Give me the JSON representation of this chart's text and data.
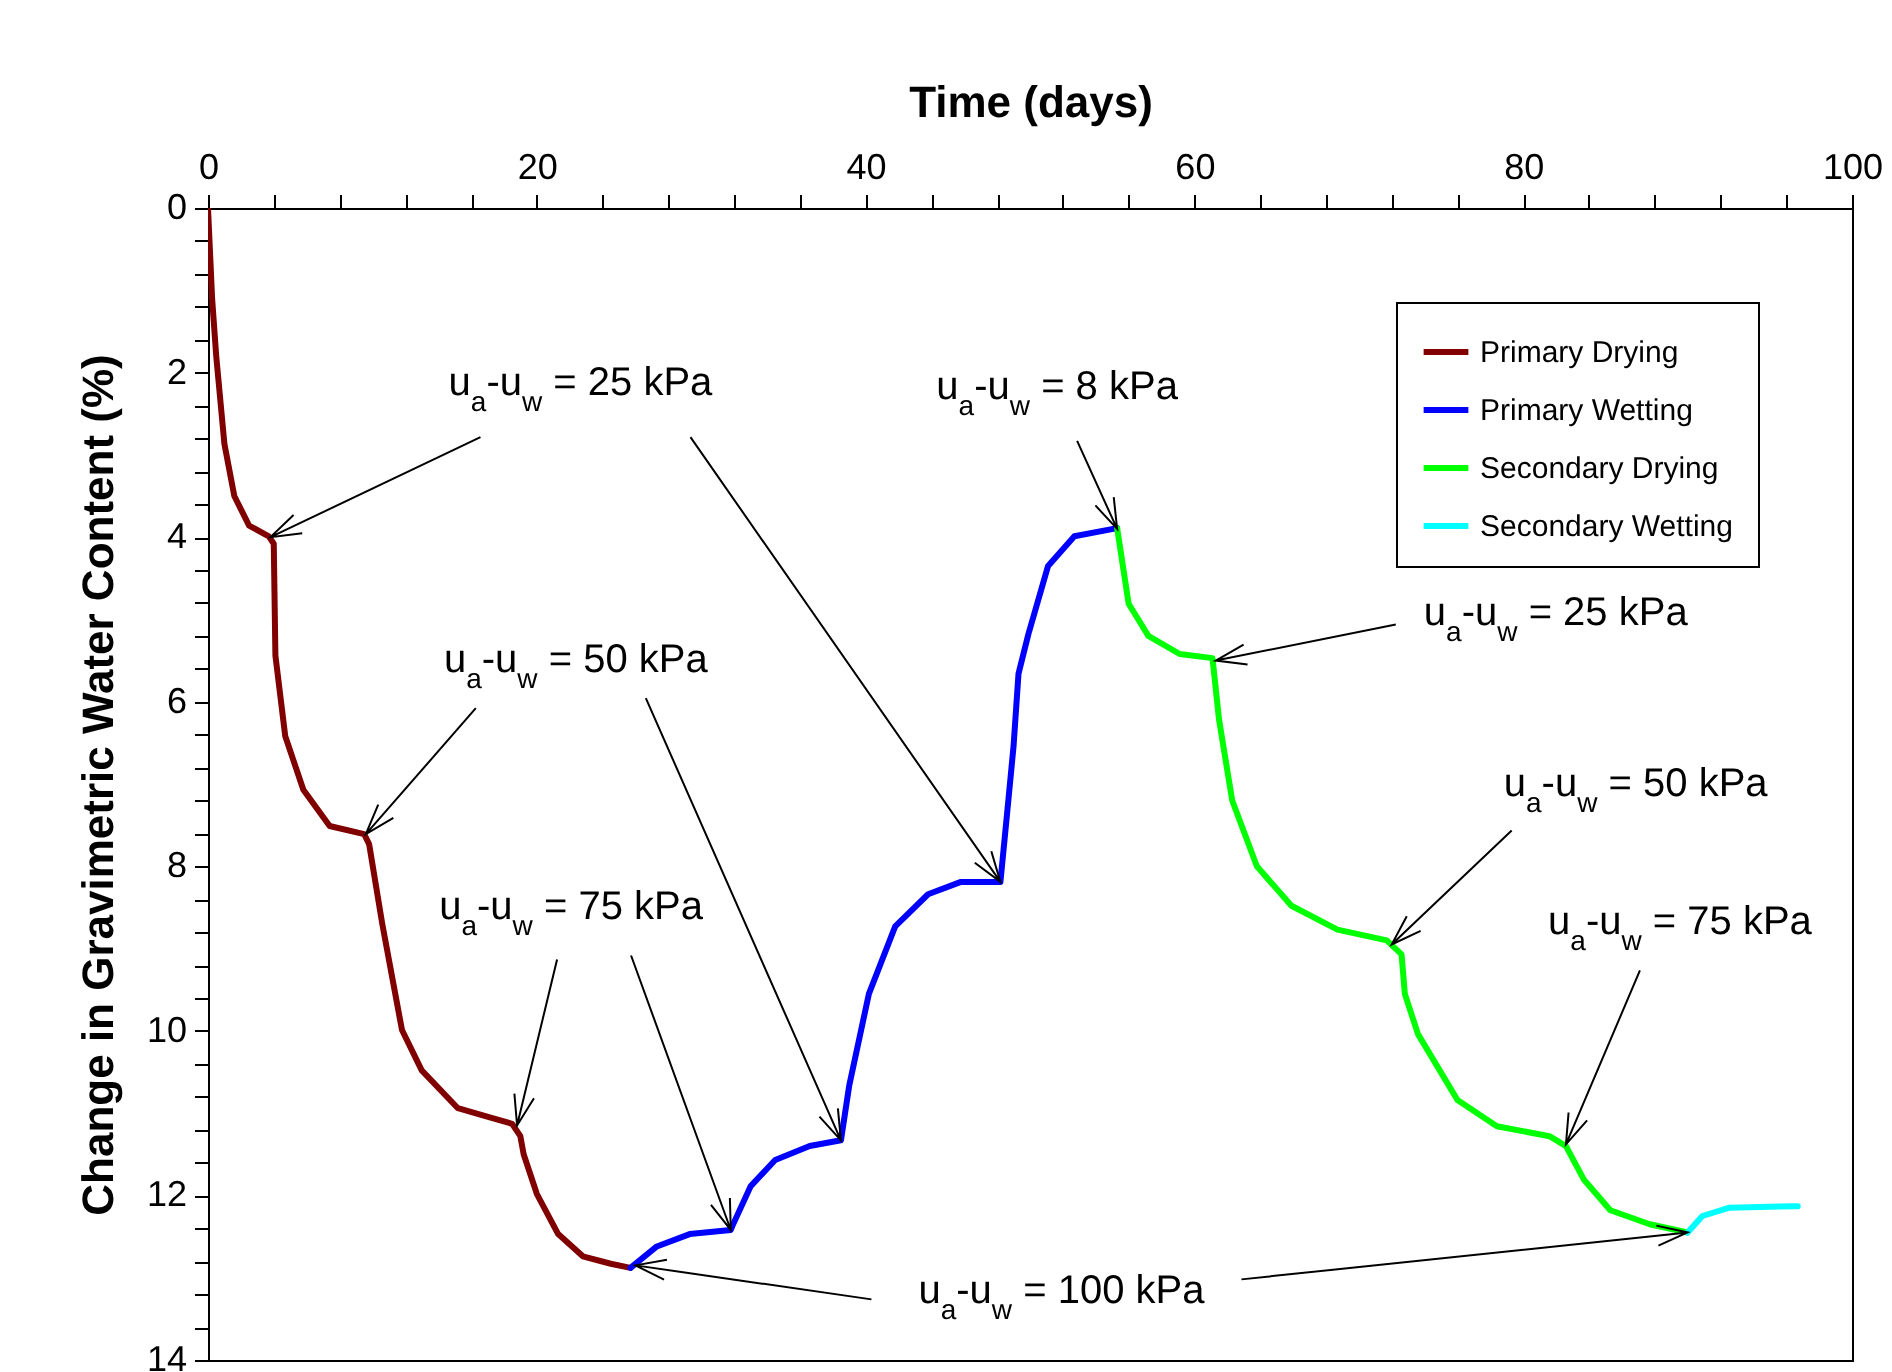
{
  "chart_data": {
    "type": "line",
    "xlabel": "Time (days)",
    "ylabel": "Change in Gravimetric Water Content (%)",
    "xlim": [
      0,
      100
    ],
    "ylim": [
      14,
      0
    ],
    "xticks": [
      0,
      {
        "value": 4,
        "label": null
      },
      {
        "value": 8,
        "label": null
      },
      {
        "value": 12,
        "label": null
      },
      {
        "value": 16,
        "label": null
      },
      20,
      {
        "value": 24,
        "label": null
      },
      {
        "value": 28,
        "label": null
      },
      {
        "value": 32,
        "label": null
      },
      {
        "value": 36,
        "label": null
      },
      40,
      {
        "value": 44,
        "label": null
      },
      {
        "value": 48,
        "label": null
      },
      {
        "value": 52,
        "label": null
      },
      {
        "value": 56,
        "label": null
      },
      60,
      {
        "value": 64,
        "label": null
      },
      {
        "value": 68,
        "label": null
      },
      {
        "value": 72,
        "label": null
      },
      {
        "value": 76,
        "label": null
      },
      80,
      {
        "value": 84,
        "label": null
      },
      {
        "value": 88,
        "label": null
      },
      {
        "value": 92,
        "label": null
      },
      {
        "value": 96,
        "label": null
      },
      100
    ],
    "yticks": [
      0,
      {
        "value": 0.4,
        "label": null
      },
      {
        "value": 0.8,
        "label": null
      },
      {
        "value": 1.2,
        "label": null
      },
      {
        "value": 1.6,
        "label": null
      },
      2,
      {
        "value": 2.4,
        "label": null
      },
      {
        "value": 2.8,
        "label": null
      },
      {
        "value": 3.2,
        "label": null
      },
      {
        "value": 3.6,
        "label": null
      },
      4,
      {
        "value": 4.4,
        "label": null
      },
      {
        "value": 4.8,
        "label": null
      },
      {
        "value": 5.2,
        "label": null
      },
      {
        "value": 5.6,
        "label": null
      },
      6,
      {
        "value": 6.4,
        "label": null
      },
      {
        "value": 6.8,
        "label": null
      },
      {
        "value": 7.2,
        "label": null
      },
      {
        "value": 7.6,
        "label": null
      },
      8,
      {
        "value": 8.4,
        "label": null
      },
      {
        "value": 8.8,
        "label": null
      },
      {
        "value": 9.2,
        "label": null
      },
      {
        "value": 9.6,
        "label": null
      },
      10,
      {
        "value": 10.4,
        "label": null
      },
      {
        "value": 10.8,
        "label": null
      },
      {
        "value": 11.2,
        "label": null
      },
      {
        "value": 11.6,
        "label": null
      },
      12,
      {
        "value": 12.4,
        "label": null
      },
      {
        "value": 12.8,
        "label": null
      },
      {
        "value": 13.2,
        "label": null
      },
      {
        "value": 13.6,
        "label": null
      },
      14
    ],
    "grid": false,
    "legend": "top right",
    "line_style": "solid",
    "series": [
      {
        "name": "Primary Drying",
        "color": "#800000",
        "x": [
          0,
          0.25,
          0.5,
          1.0,
          1.6,
          2.5,
          3.7,
          4.0,
          4.1,
          4.7,
          5.8,
          7.4,
          9.5,
          9.8,
          10.6,
          11.8,
          13.0,
          15.2,
          17.3,
          18.5,
          19.0,
          19.2,
          20.0,
          21.3,
          22.8,
          24.5,
          25.7
        ],
        "values": [
          0,
          1.1,
          1.8,
          2.87,
          3.5,
          3.86,
          3.99,
          4.08,
          5.44,
          6.42,
          7.07,
          7.51,
          7.61,
          7.73,
          8.7,
          9.99,
          10.48,
          10.94,
          11.06,
          11.13,
          11.28,
          11.5,
          11.98,
          12.47,
          12.74,
          12.83,
          12.88
        ]
      },
      {
        "name": "Primary Wetting",
        "color": "#0000ff",
        "x": [
          25.7,
          27.3,
          29.3,
          31.8,
          31.9,
          33.0,
          34.5,
          36.6,
          38.5,
          39.0,
          40.2,
          41.8,
          43.8,
          45.8,
          48.2,
          48.6,
          49.0,
          49.3,
          49.9,
          51.1,
          52.7,
          55.3
        ],
        "values": [
          12.88,
          12.62,
          12.47,
          12.42,
          12.37,
          11.89,
          11.57,
          11.4,
          11.33,
          10.67,
          9.55,
          8.73,
          8.34,
          8.19,
          8.19,
          7.37,
          6.54,
          5.66,
          5.18,
          4.35,
          3.99,
          3.89
        ]
      },
      {
        "name": "Secondary Drying",
        "color": "#00ff00",
        "x": [
          55.3,
          56.0,
          57.2,
          59.1,
          61.1,
          61.5,
          62.3,
          63.8,
          65.9,
          68.7,
          71.7,
          72.6,
          72.8,
          73.6,
          76.0,
          78.4,
          81.6,
          82.6,
          83.7,
          85.3,
          87.7,
          90.0
        ],
        "values": [
          3.89,
          4.81,
          5.2,
          5.42,
          5.47,
          6.22,
          7.2,
          8.0,
          8.48,
          8.77,
          8.9,
          9.07,
          9.55,
          10.04,
          10.84,
          11.16,
          11.28,
          11.4,
          11.81,
          12.18,
          12.35,
          12.45
        ]
      },
      {
        "name": "Secondary Wetting",
        "color": "#00ffff",
        "x": [
          90.0,
          90.9,
          92.5,
          96.7
        ],
        "values": [
          12.45,
          12.25,
          12.15,
          12.13
        ]
      }
    ],
    "annotations": [
      {
        "text": "u$_{a}$-u$_{w}$ = 25 kPa",
        "x": 3.8,
        "y": 4.0
      },
      {
        "text": "u$_{a}$-u$_{w}$ = 50 kPa",
        "x": 9.6,
        "y": 7.61
      },
      {
        "text": "u$_{a}$-u$_{w}$ = 75 kPa",
        "x": 18.8,
        "y": 11.15
      },
      {
        "text": "u$_{a}$-u$_{w}$ = 100 kPa",
        "x": 26.0,
        "y": 12.85
      },
      {
        "text": "u$_{a}$-u$_{w}$ = 8 kPa",
        "x": 55.3,
        "y": 3.9
      },
      {
        "text": "u$_{a}$-u$_{w}$ = 25 kPa",
        "x": 61.3,
        "y": 5.5
      },
      {
        "text": "u$_{a}$-u$_{w}$ = 50 kPa",
        "x": 72.0,
        "y": 8.95
      },
      {
        "text": "u$_{a}$-u$_{w}$ = 75 kPa",
        "x": 82.6,
        "y": 11.38
      }
    ]
  }
}
